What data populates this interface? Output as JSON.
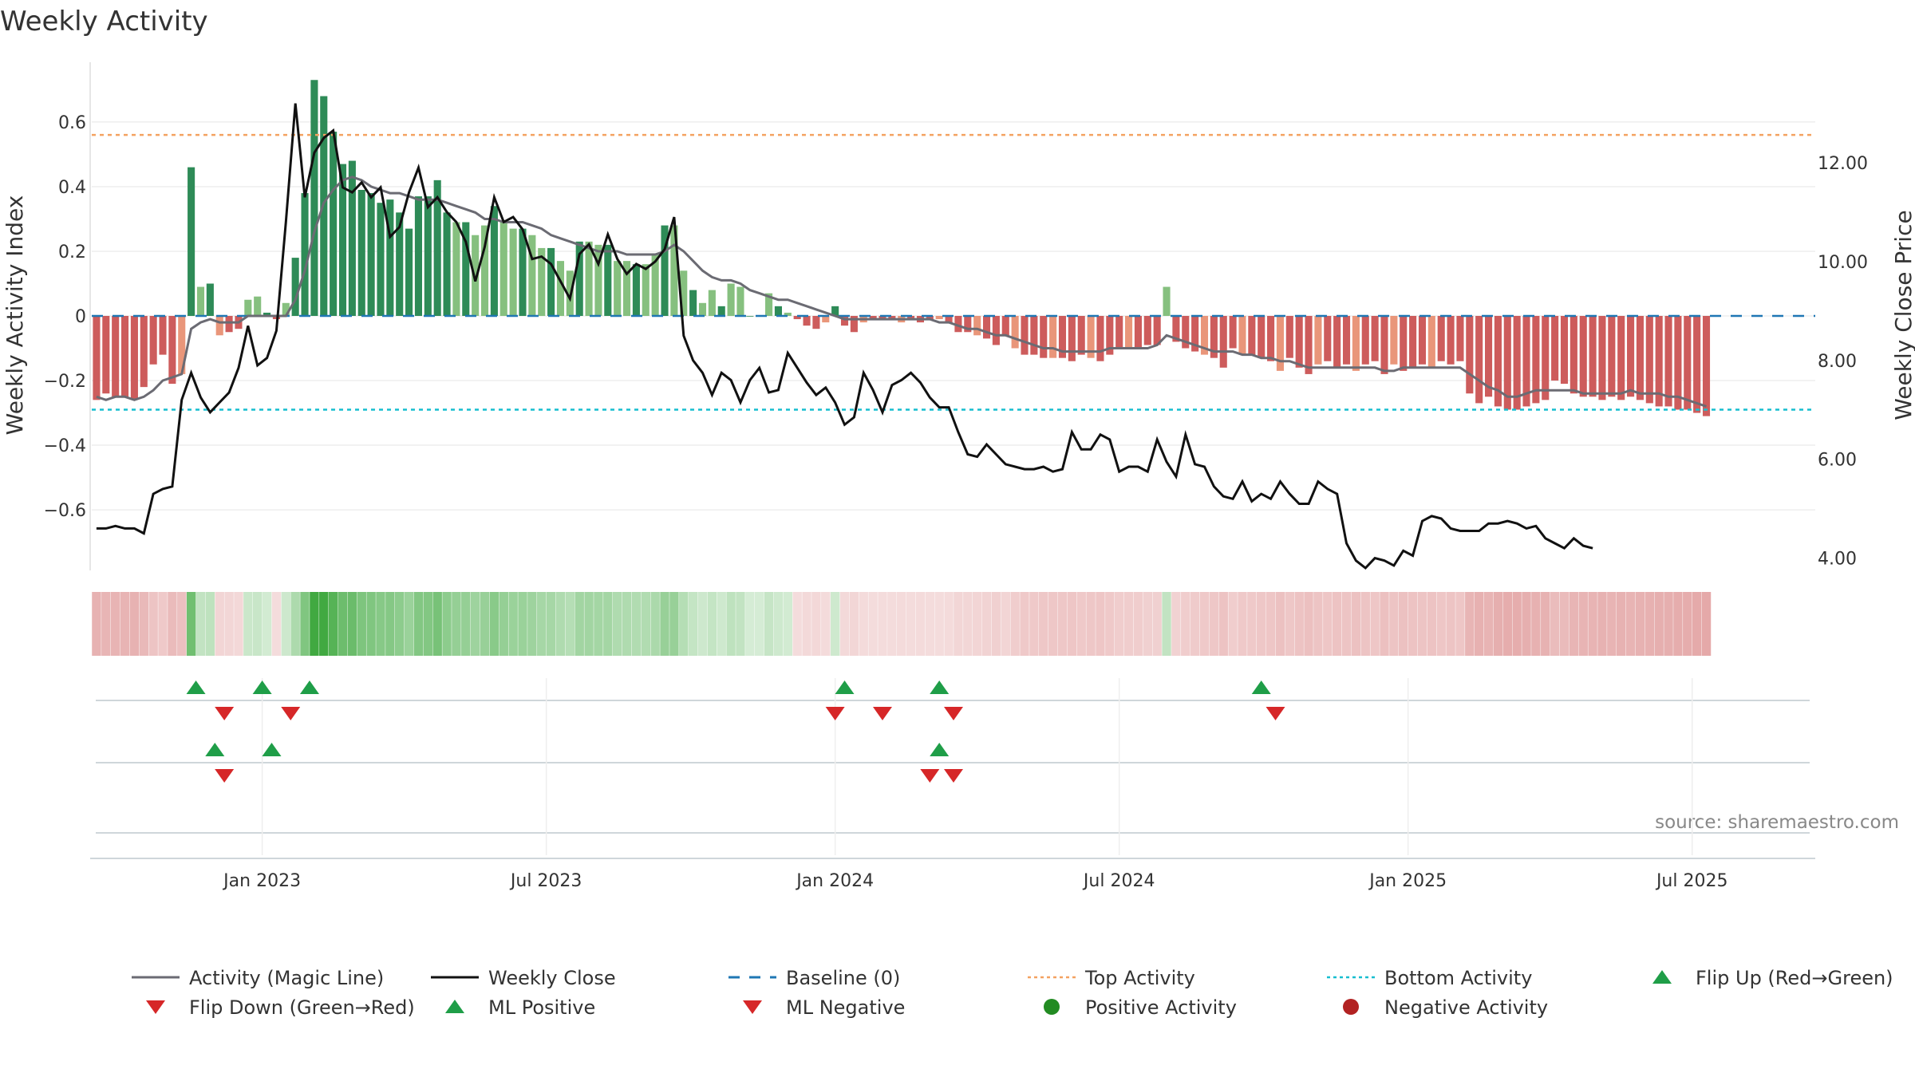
{
  "chart_data": {
    "type": "bar",
    "title": "Weekly Activity",
    "ylabel": "Weekly Activity Index",
    "y2label": "Weekly Close Price",
    "ylim": [
      -0.78,
      0.78
    ],
    "y2lim": [
      3.8,
      14.0
    ],
    "y_ticks": [
      {
        "value": 0.6,
        "label": "0.6"
      },
      {
        "value": 0.4,
        "label": "0.4"
      },
      {
        "value": 0.2,
        "label": "0.2"
      },
      {
        "value": 0,
        "label": "0"
      },
      {
        "value": -0.2,
        "label": "−0.2"
      },
      {
        "value": -0.4,
        "label": "−0.4"
      },
      {
        "value": -0.6,
        "label": "−0.6"
      }
    ],
    "y2_ticks": [
      {
        "value": 12,
        "label": "12.00"
      },
      {
        "value": 10,
        "label": "10.00"
      },
      {
        "value": 8,
        "label": "8.00"
      },
      {
        "value": 6,
        "label": "6.00"
      },
      {
        "value": 4,
        "label": "4.00"
      }
    ],
    "x_range_weeks": [
      0,
      181
    ],
    "x_ticks": [
      {
        "week": 17.5,
        "label": "Jan 2023"
      },
      {
        "week": 47.5,
        "label": "Jul 2023"
      },
      {
        "week": 78,
        "label": "Jan 2024"
      },
      {
        "week": 108,
        "label": "Jul 2024"
      },
      {
        "week": 138.5,
        "label": "Jan 2025"
      },
      {
        "week": 168.5,
        "label": "Jul 2025"
      }
    ],
    "top_activity": 0.56,
    "bottom_activity": -0.29,
    "baseline": 0,
    "series": [
      {
        "name": "Weekly Activity Index",
        "values": [
          -0.26,
          -0.24,
          -0.25,
          -0.25,
          -0.26,
          -0.22,
          -0.15,
          -0.12,
          -0.21,
          -0.18,
          0.46,
          0.09,
          0.1,
          -0.06,
          -0.05,
          -0.04,
          0.05,
          0.06,
          0.01,
          -0.01,
          0.04,
          0.18,
          0.38,
          0.73,
          0.68,
          0.57,
          0.47,
          0.48,
          0.39,
          0.38,
          0.35,
          0.36,
          0.32,
          0.27,
          0.37,
          0.37,
          0.42,
          0.32,
          0.29,
          0.29,
          0.25,
          0.28,
          0.34,
          0.29,
          0.27,
          0.27,
          0.25,
          0.21,
          0.21,
          0.17,
          0.14,
          0.23,
          0.23,
          0.22,
          0.22,
          0.17,
          0.17,
          0.16,
          0.16,
          0.19,
          0.28,
          0.28,
          0.14,
          0.08,
          0.04,
          0.08,
          0.03,
          0.1,
          0.09,
          0.0,
          0.0,
          0.07,
          0.03,
          0.01,
          -0.01,
          -0.03,
          -0.04,
          -0.02,
          0.03,
          -0.03,
          -0.05,
          -0.02,
          -0.01,
          -0.01,
          -0.01,
          -0.02,
          -0.01,
          -0.02,
          -0.01,
          -0.01,
          -0.02,
          -0.05,
          -0.05,
          -0.06,
          -0.07,
          -0.09,
          -0.06,
          -0.1,
          -0.12,
          -0.12,
          -0.13,
          -0.13,
          -0.13,
          -0.14,
          -0.12,
          -0.13,
          -0.14,
          -0.12,
          -0.1,
          -0.1,
          -0.1,
          -0.09,
          -0.09,
          0.09,
          -0.08,
          -0.1,
          -0.11,
          -0.12,
          -0.13,
          -0.16,
          -0.1,
          -0.12,
          -0.12,
          -0.13,
          -0.14,
          -0.17,
          -0.13,
          -0.16,
          -0.18,
          -0.15,
          -0.14,
          -0.16,
          -0.15,
          -0.17,
          -0.15,
          -0.14,
          -0.18,
          -0.15,
          -0.17,
          -0.16,
          -0.15,
          -0.16,
          -0.14,
          -0.15,
          -0.14,
          -0.24,
          -0.27,
          -0.25,
          -0.28,
          -0.29,
          -0.29,
          -0.28,
          -0.27,
          -0.26,
          -0.2,
          -0.21,
          -0.24,
          -0.25,
          -0.25,
          -0.26,
          -0.25,
          -0.26,
          -0.25,
          -0.26,
          -0.27,
          -0.28,
          -0.28,
          -0.29,
          -0.29,
          -0.3,
          -0.31
        ]
      },
      {
        "name": "Activity (Magic Line)",
        "values": [
          -0.25,
          -0.26,
          -0.25,
          -0.25,
          -0.26,
          -0.25,
          -0.23,
          -0.2,
          -0.19,
          -0.18,
          -0.04,
          -0.02,
          -0.01,
          -0.02,
          -0.02,
          -0.02,
          0.0,
          0.0,
          0.0,
          0.0,
          0.0,
          0.05,
          0.14,
          0.26,
          0.35,
          0.39,
          0.42,
          0.43,
          0.42,
          0.4,
          0.39,
          0.38,
          0.38,
          0.37,
          0.36,
          0.36,
          0.36,
          0.35,
          0.34,
          0.33,
          0.32,
          0.3,
          0.3,
          0.29,
          0.29,
          0.29,
          0.28,
          0.27,
          0.25,
          0.24,
          0.23,
          0.22,
          0.21,
          0.2,
          0.2,
          0.2,
          0.19,
          0.19,
          0.19,
          0.19,
          0.2,
          0.22,
          0.2,
          0.17,
          0.14,
          0.12,
          0.11,
          0.11,
          0.1,
          0.08,
          0.07,
          0.06,
          0.05,
          0.05,
          0.04,
          0.03,
          0.02,
          0.01,
          0.0,
          -0.01,
          -0.01,
          -0.01,
          -0.01,
          -0.01,
          -0.01,
          -0.01,
          -0.01,
          -0.01,
          -0.01,
          -0.02,
          -0.02,
          -0.03,
          -0.04,
          -0.04,
          -0.05,
          -0.06,
          -0.06,
          -0.07,
          -0.08,
          -0.09,
          -0.1,
          -0.1,
          -0.11,
          -0.11,
          -0.11,
          -0.11,
          -0.11,
          -0.1,
          -0.1,
          -0.1,
          -0.1,
          -0.1,
          -0.09,
          -0.06,
          -0.07,
          -0.08,
          -0.09,
          -0.1,
          -0.11,
          -0.11,
          -0.11,
          -0.12,
          -0.12,
          -0.13,
          -0.13,
          -0.14,
          -0.14,
          -0.15,
          -0.16,
          -0.16,
          -0.16,
          -0.16,
          -0.16,
          -0.16,
          -0.16,
          -0.16,
          -0.17,
          -0.17,
          -0.16,
          -0.16,
          -0.16,
          -0.16,
          -0.16,
          -0.16,
          -0.16,
          -0.18,
          -0.2,
          -0.22,
          -0.23,
          -0.25,
          -0.25,
          -0.24,
          -0.23,
          -0.23,
          -0.23,
          -0.23,
          -0.23,
          -0.24,
          -0.24,
          -0.24,
          -0.24,
          -0.24,
          -0.23,
          -0.24,
          -0.24,
          -0.24,
          -0.25,
          -0.25,
          -0.26,
          -0.27,
          -0.28
        ]
      },
      {
        "name": "Weekly Close",
        "values": [
          4.6,
          4.6,
          4.65,
          4.6,
          4.6,
          4.5,
          5.3,
          5.4,
          5.45,
          7.2,
          7.75,
          7.25,
          6.95,
          7.15,
          7.35,
          7.85,
          8.7,
          7.9,
          8.05,
          8.6,
          10.8,
          13.2,
          11.3,
          12.2,
          12.5,
          12.65,
          11.5,
          11.4,
          11.6,
          11.3,
          11.5,
          10.5,
          10.7,
          11.4,
          11.9,
          11.1,
          11.3,
          11.0,
          10.8,
          10.4,
          9.6,
          10.3,
          11.3,
          10.8,
          10.9,
          10.65,
          10.05,
          10.1,
          9.95,
          9.6,
          9.25,
          10.15,
          10.35,
          9.95,
          10.55,
          10.05,
          9.75,
          9.95,
          9.85,
          10.0,
          10.25,
          10.9,
          8.5,
          8.0,
          7.75,
          7.3,
          7.75,
          7.6,
          7.15,
          7.6,
          7.85,
          7.35,
          7.4,
          8.15,
          7.85,
          7.55,
          7.3,
          7.45,
          7.15,
          6.7,
          6.85,
          7.75,
          7.4,
          6.95,
          7.5,
          7.6,
          7.75,
          7.55,
          7.25,
          7.05,
          7.05,
          6.55,
          6.1,
          6.05,
          6.3,
          6.1,
          5.9,
          5.85,
          5.8,
          5.8,
          5.85,
          5.75,
          5.8,
          6.55,
          6.2,
          6.2,
          6.5,
          6.4,
          5.75,
          5.85,
          5.85,
          5.75,
          6.4,
          5.95,
          5.65,
          6.5,
          5.9,
          5.85,
          5.45,
          5.25,
          5.2,
          5.55,
          5.15,
          5.3,
          5.2,
          5.55,
          5.3,
          5.1,
          5.1,
          5.55,
          5.4,
          5.3,
          4.3,
          3.95,
          3.8,
          4.0,
          3.95,
          3.85,
          4.15,
          4.05,
          4.75,
          4.85,
          4.8,
          4.6,
          4.55,
          4.55,
          4.55,
          4.7,
          4.7,
          4.75,
          4.7,
          4.6,
          4.65,
          4.4,
          4.3,
          4.2,
          4.4,
          4.25,
          4.2
        ]
      }
    ],
    "bar_colors": {
      "strong_positive": "#2e8b57",
      "weak_positive": "#86c07f",
      "strong_negative": "#cd5c5c",
      "weak_negative": "#e9967a"
    },
    "activity_strip": {
      "positive_color": "#2ca02c",
      "negative_color": "#cd5c5c"
    },
    "flip_rows": [
      {
        "name": "Flip Up / Flip Down",
        "up_weeks": [
          10.5,
          17.5,
          22.5,
          79,
          89,
          123
        ],
        "down_weeks": [
          13.5,
          20.5,
          78,
          83,
          90.5,
          124.5
        ]
      },
      {
        "name": "ML Positive / ML Negative",
        "up_weeks": [
          12.5,
          18.5,
          89
        ],
        "down_weeks": [
          13.5,
          88,
          90.5
        ]
      },
      {
        "name": "Positive / Negative Activity",
        "up_weeks": [],
        "down_weeks": []
      }
    ],
    "legend": [
      {
        "label": "Activity (Magic Line)",
        "kind": "line",
        "color": "#6b6b73"
      },
      {
        "label": "Weekly Close",
        "kind": "line",
        "color": "#111111"
      },
      {
        "label": "Baseline (0)",
        "kind": "dash",
        "color": "#1f77b4"
      },
      {
        "label": "Top Activity",
        "kind": "dot",
        "color": "#f4a261"
      },
      {
        "label": "Bottom Activity",
        "kind": "dot",
        "color": "#17becf"
      },
      {
        "label": "Flip Up (Red→Green)",
        "kind": "tri-up",
        "color": "#1f9e48"
      },
      {
        "label": "Flip Down (Green→Red)",
        "kind": "tri-down",
        "color": "#d62728"
      },
      {
        "label": "ML Positive",
        "kind": "tri-up",
        "color": "#1f9e48"
      },
      {
        "label": "ML Negative",
        "kind": "tri-down",
        "color": "#d62728"
      },
      {
        "label": "Positive Activity",
        "kind": "circle",
        "color": "#228b22"
      },
      {
        "label": "Negative Activity",
        "kind": "circle",
        "color": "#b22222"
      }
    ],
    "legend_position": "bottom",
    "source": "source: sharemaestro.com"
  }
}
